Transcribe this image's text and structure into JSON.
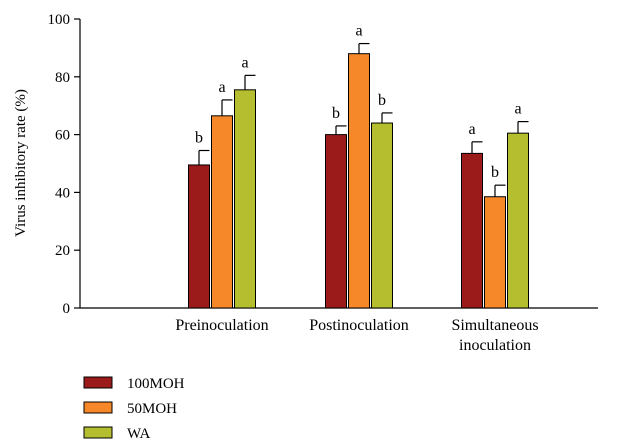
{
  "chart_data": {
    "type": "bar",
    "title": "",
    "xlabel": "",
    "ylabel": "Virus inhibitory rate (%)",
    "ylim": [
      0,
      100
    ],
    "yticks": [
      0,
      20,
      40,
      60,
      80,
      100
    ],
    "categories": [
      {
        "lines": [
          "Preinoculation"
        ]
      },
      {
        "lines": [
          "Postinoculation"
        ]
      },
      {
        "lines": [
          "Simultaneous",
          "inoculation"
        ]
      }
    ],
    "series": [
      {
        "name": "100MOH",
        "color": "#9b1b1b",
        "values": [
          49.5,
          60,
          53.5
        ],
        "errors": [
          5,
          3,
          4
        ],
        "labels": [
          "b",
          "b",
          "a"
        ]
      },
      {
        "name": "50MOH",
        "color": "#f7882a",
        "values": [
          66.5,
          88,
          38.5
        ],
        "errors": [
          5.5,
          3.5,
          4
        ],
        "labels": [
          "a",
          "a",
          "b"
        ]
      },
      {
        "name": "WA",
        "color": "#b5be2e",
        "values": [
          75.5,
          64,
          60.5
        ],
        "errors": [
          5,
          3.5,
          4
        ],
        "labels": [
          "a",
          "b",
          "a"
        ]
      }
    ],
    "grid": false,
    "legend_position": "bottom-left"
  }
}
